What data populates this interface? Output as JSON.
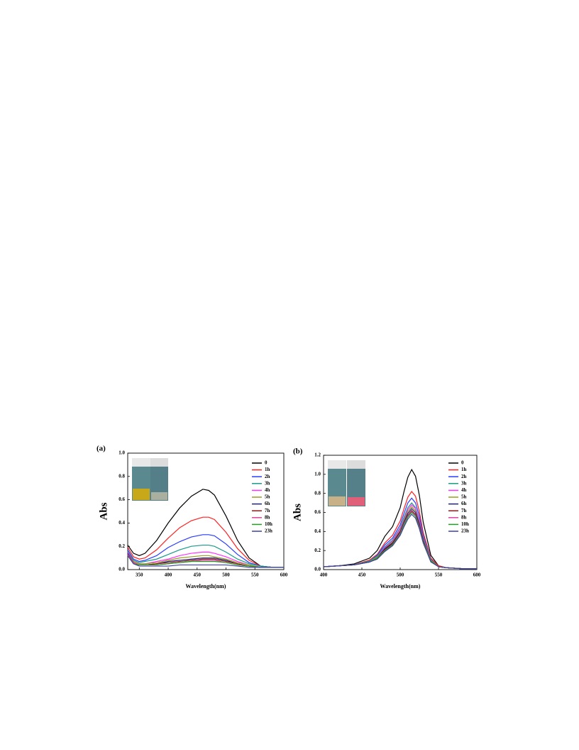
{
  "chart_data": [
    {
      "type": "line",
      "panel_label": "(a)",
      "y_label": "Abs",
      "x_label": "Wavelength(nm)",
      "xlim": [
        330,
        600
      ],
      "xticks": [
        350,
        400,
        450,
        500,
        550,
        600
      ],
      "ylim": [
        0,
        1.0
      ],
      "yticks": [
        {
          "value": 0,
          "label": "0.0"
        },
        0.2,
        0.4,
        0.6,
        0.8,
        {
          "value": 1.0,
          "label": "1.0"
        }
      ],
      "x": [
        330,
        340,
        350,
        360,
        380,
        400,
        420,
        440,
        460,
        470,
        480,
        500,
        520,
        540,
        560,
        580,
        600
      ],
      "series": [
        {
          "name": "0",
          "color": "#000000",
          "values": [
            0.21,
            0.14,
            0.12,
            0.14,
            0.25,
            0.4,
            0.53,
            0.63,
            0.69,
            0.68,
            0.64,
            0.46,
            0.25,
            0.1,
            0.03,
            0.02,
            0.02
          ]
        },
        {
          "name": "1h",
          "color": "#ff2020",
          "values": [
            0.19,
            0.11,
            0.09,
            0.1,
            0.17,
            0.27,
            0.36,
            0.42,
            0.45,
            0.45,
            0.43,
            0.32,
            0.18,
            0.08,
            0.03,
            0.02,
            0.02
          ]
        },
        {
          "name": "2h",
          "color": "#2a3cff",
          "values": [
            0.17,
            0.09,
            0.07,
            0.08,
            0.12,
            0.19,
            0.24,
            0.28,
            0.3,
            0.3,
            0.29,
            0.22,
            0.13,
            0.06,
            0.03,
            0.02,
            0.02
          ]
        },
        {
          "name": "3h",
          "color": "#1a9a8a",
          "values": [
            0.16,
            0.08,
            0.06,
            0.07,
            0.09,
            0.13,
            0.17,
            0.2,
            0.21,
            0.21,
            0.2,
            0.15,
            0.09,
            0.05,
            0.03,
            0.02,
            0.02
          ]
        },
        {
          "name": "4h",
          "color": "#ff30ff",
          "values": [
            0.15,
            0.07,
            0.05,
            0.05,
            0.07,
            0.09,
            0.12,
            0.14,
            0.15,
            0.15,
            0.14,
            0.11,
            0.07,
            0.04,
            0.02,
            0.02,
            0.02
          ]
        },
        {
          "name": "5h",
          "color": "#9a9a20",
          "values": [
            0.14,
            0.07,
            0.05,
            0.05,
            0.06,
            0.08,
            0.1,
            0.11,
            0.12,
            0.12,
            0.11,
            0.09,
            0.06,
            0.04,
            0.02,
            0.02,
            0.02
          ]
        },
        {
          "name": "6h",
          "color": "#202080",
          "values": [
            0.14,
            0.06,
            0.04,
            0.04,
            0.05,
            0.07,
            0.08,
            0.09,
            0.1,
            0.1,
            0.1,
            0.08,
            0.05,
            0.03,
            0.02,
            0.02,
            0.02
          ]
        },
        {
          "name": "7h",
          "color": "#8a1a1a",
          "values": [
            0.13,
            0.06,
            0.04,
            0.04,
            0.05,
            0.06,
            0.07,
            0.08,
            0.09,
            0.09,
            0.09,
            0.07,
            0.05,
            0.03,
            0.02,
            0.02,
            0.02
          ]
        },
        {
          "name": "8h",
          "color": "#e040a0",
          "values": [
            0.13,
            0.06,
            0.04,
            0.04,
            0.04,
            0.05,
            0.06,
            0.07,
            0.08,
            0.08,
            0.08,
            0.06,
            0.04,
            0.03,
            0.02,
            0.02,
            0.02
          ]
        },
        {
          "name": "10h",
          "color": "#20a020",
          "values": [
            0.12,
            0.05,
            0.04,
            0.04,
            0.04,
            0.05,
            0.06,
            0.07,
            0.07,
            0.07,
            0.07,
            0.06,
            0.04,
            0.03,
            0.02,
            0.02,
            0.02
          ]
        },
        {
          "name": "23h",
          "color": "#4040a0",
          "values": [
            0.12,
            0.05,
            0.03,
            0.03,
            0.03,
            0.03,
            0.04,
            0.04,
            0.04,
            0.04,
            0.04,
            0.04,
            0.03,
            0.02,
            0.02,
            0.02,
            0.02
          ]
        }
      ]
    },
    {
      "type": "line",
      "panel_label": "(b)",
      "y_label": "Abs",
      "x_label": "Wavelength(nm)",
      "xlim": [
        400,
        600
      ],
      "xticks": [
        400,
        450,
        500,
        550,
        600
      ],
      "ylim": [
        0,
        1.2
      ],
      "yticks": [
        {
          "value": 0,
          "label": "0.0"
        },
        0.2,
        0.4,
        0.6,
        0.8,
        {
          "value": 1.0,
          "label": "1.0"
        },
        1.2
      ],
      "x": [
        400,
        420,
        440,
        460,
        470,
        480,
        490,
        500,
        505,
        510,
        515,
        520,
        525,
        530,
        540,
        550,
        560,
        580,
        600
      ],
      "series": [
        {
          "name": "0",
          "color": "#000000",
          "values": [
            0.03,
            0.04,
            0.06,
            0.12,
            0.2,
            0.35,
            0.45,
            0.65,
            0.82,
            0.97,
            1.05,
            0.98,
            0.78,
            0.5,
            0.15,
            0.04,
            0.02,
            0.01,
            0.01
          ]
        },
        {
          "name": "1h",
          "color": "#ff2020",
          "values": [
            0.03,
            0.04,
            0.05,
            0.1,
            0.16,
            0.28,
            0.36,
            0.51,
            0.64,
            0.76,
            0.82,
            0.77,
            0.61,
            0.39,
            0.12,
            0.04,
            0.02,
            0.01,
            0.01
          ]
        },
        {
          "name": "2h",
          "color": "#2a3cff",
          "values": [
            0.03,
            0.04,
            0.05,
            0.09,
            0.15,
            0.26,
            0.33,
            0.47,
            0.59,
            0.7,
            0.75,
            0.7,
            0.56,
            0.36,
            0.11,
            0.03,
            0.02,
            0.01,
            0.01
          ]
        },
        {
          "name": "3h",
          "color": "#1a9a8a",
          "values": [
            0.03,
            0.04,
            0.05,
            0.09,
            0.14,
            0.24,
            0.31,
            0.44,
            0.55,
            0.65,
            0.7,
            0.65,
            0.52,
            0.34,
            0.1,
            0.03,
            0.02,
            0.01,
            0.01
          ]
        },
        {
          "name": "4h",
          "color": "#ff30ff",
          "values": [
            0.03,
            0.04,
            0.05,
            0.08,
            0.13,
            0.23,
            0.3,
            0.43,
            0.53,
            0.63,
            0.68,
            0.64,
            0.51,
            0.33,
            0.1,
            0.03,
            0.02,
            0.01,
            0.01
          ]
        },
        {
          "name": "5h",
          "color": "#9a9a20",
          "values": [
            0.03,
            0.04,
            0.05,
            0.08,
            0.13,
            0.22,
            0.29,
            0.41,
            0.52,
            0.61,
            0.66,
            0.62,
            0.49,
            0.32,
            0.1,
            0.03,
            0.02,
            0.01,
            0.01
          ]
        },
        {
          "name": "6h",
          "color": "#202080",
          "values": [
            0.03,
            0.04,
            0.05,
            0.08,
            0.12,
            0.22,
            0.28,
            0.4,
            0.5,
            0.59,
            0.64,
            0.6,
            0.48,
            0.31,
            0.09,
            0.03,
            0.02,
            0.01,
            0.01
          ]
        },
        {
          "name": "7h",
          "color": "#8a1a1a",
          "values": [
            0.03,
            0.04,
            0.05,
            0.08,
            0.12,
            0.21,
            0.27,
            0.39,
            0.48,
            0.57,
            0.62,
            0.58,
            0.46,
            0.3,
            0.09,
            0.03,
            0.02,
            0.01,
            0.01
          ]
        },
        {
          "name": "8h",
          "color": "#e040a0",
          "values": [
            0.03,
            0.04,
            0.05,
            0.08,
            0.12,
            0.2,
            0.26,
            0.38,
            0.48,
            0.56,
            0.61,
            0.57,
            0.45,
            0.29,
            0.09,
            0.03,
            0.02,
            0.01,
            0.01
          ]
        },
        {
          "name": "10h",
          "color": "#20a020",
          "values": [
            0.03,
            0.04,
            0.05,
            0.08,
            0.12,
            0.2,
            0.26,
            0.37,
            0.47,
            0.55,
            0.6,
            0.56,
            0.44,
            0.29,
            0.09,
            0.03,
            0.02,
            0.01,
            0.01
          ]
        },
        {
          "name": "23h",
          "color": "#4040a0",
          "values": [
            0.03,
            0.04,
            0.05,
            0.08,
            0.11,
            0.19,
            0.25,
            0.36,
            0.45,
            0.53,
            0.58,
            0.54,
            0.43,
            0.28,
            0.08,
            0.03,
            0.02,
            0.01,
            0.01
          ]
        }
      ]
    }
  ]
}
